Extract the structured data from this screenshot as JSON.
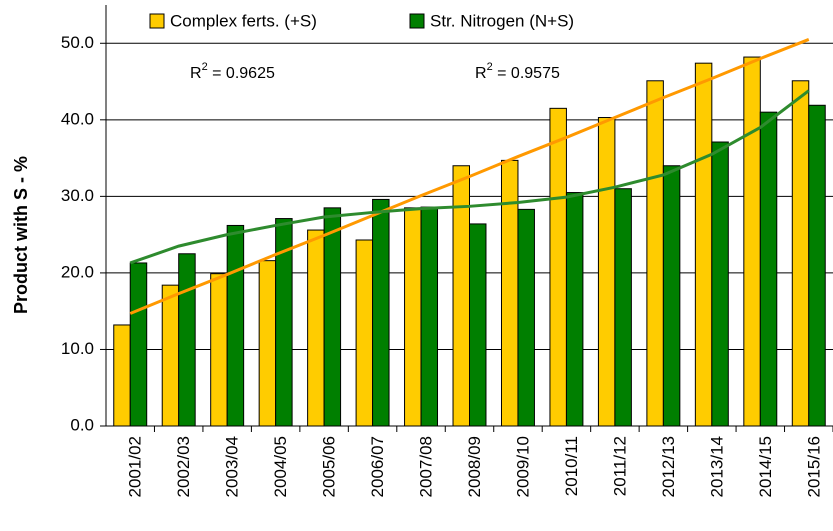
{
  "chart_data": {
    "type": "bar",
    "y_label": "Product with S - %",
    "categories": [
      "2001/02",
      "2002/03",
      "2003/04",
      "2004/05",
      "2005/06",
      "2006/07",
      "2007/08",
      "2008/09",
      "2009/10",
      "2010/11",
      "2011/12",
      "2012/13",
      "2013/14",
      "2014/15",
      "2015/16"
    ],
    "series": [
      {
        "name": "Complex ferts. (+S)",
        "color": "#ffcc00",
        "values": [
          13.2,
          18.4,
          19.9,
          21.6,
          25.6,
          24.3,
          28.5,
          34.0,
          34.7,
          41.5,
          40.3,
          45.1,
          47.4,
          48.2,
          45.1
        ]
      },
      {
        "name": "Str. Nitrogen (N+S)",
        "color": "#007f00",
        "values": [
          21.3,
          22.5,
          26.2,
          27.1,
          28.5,
          29.6,
          28.6,
          26.4,
          28.3,
          30.5,
          31.0,
          34.0,
          37.1,
          41.0,
          41.9
        ]
      }
    ],
    "trendlines": [
      {
        "color": "#ff9900",
        "values": [
          14.7,
          17.3,
          19.8,
          22.4,
          24.9,
          27.5,
          30.1,
          32.6,
          35.2,
          37.7,
          40.3,
          42.9,
          45.4,
          48.0,
          50.5
        ]
      },
      {
        "color": "#2e8b2e",
        "values": [
          21.3,
          23.5,
          25.0,
          26.2,
          27.3,
          27.9,
          28.4,
          28.7,
          29.2,
          29.9,
          31.2,
          32.8,
          35.5,
          39.0,
          43.8
        ]
      }
    ],
    "annotations": [
      {
        "base": "R",
        "sup": "2",
        "text": " = 0.9625"
      },
      {
        "base": "R",
        "sup": "2",
        "text": " = 0.9575"
      }
    ],
    "ylim": [
      0,
      55
    ],
    "yticks": [
      {
        "value": 0,
        "label": "0.0"
      },
      {
        "value": 10,
        "label": "10.0"
      },
      {
        "value": 20,
        "label": "20.0"
      },
      {
        "value": 30,
        "label": "30.0"
      },
      {
        "value": 40,
        "label": "40.0"
      },
      {
        "value": 50,
        "label": "50.0"
      }
    ],
    "grid": true
  }
}
